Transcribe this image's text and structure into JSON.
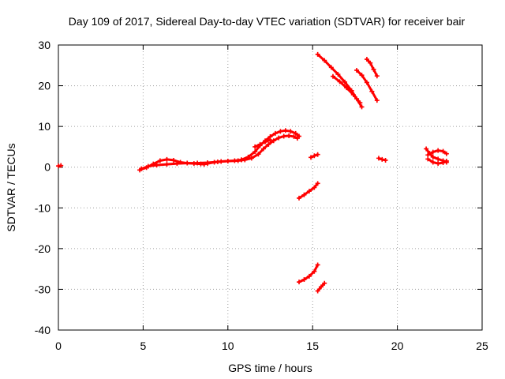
{
  "chart_data": {
    "type": "scatter",
    "title": "Day 109 of 2017, Sidereal Day-to-day VTEC variation (SDTVAR) for receiver bair",
    "xlabel": "GPS time / hours",
    "ylabel": "SDTVAR / TECUs",
    "xlim": [
      0,
      25
    ],
    "ylim": [
      -40,
      30
    ],
    "xticks": [
      "0",
      "5",
      "10",
      "15",
      "20",
      "25"
    ],
    "yticks": [
      "-40",
      "-30",
      "-20",
      "-10",
      "0",
      "10",
      "20",
      "30"
    ],
    "grid": true,
    "series_color": "#ff0000",
    "segments": [
      [
        [
          0.0,
          0.3
        ],
        [
          0.15,
          0.4
        ]
      ],
      [
        [
          4.8,
          -0.7
        ],
        [
          5.2,
          -0.1
        ],
        [
          5.6,
          0.8
        ],
        [
          6.0,
          1.6
        ],
        [
          6.4,
          1.9
        ],
        [
          6.8,
          1.7
        ],
        [
          7.2,
          1.2
        ],
        [
          7.6,
          1.0
        ],
        [
          8.0,
          0.9
        ],
        [
          8.4,
          0.8
        ],
        [
          8.6,
          0.7
        ],
        [
          8.8,
          0.9
        ],
        [
          9.2,
          1.2
        ],
        [
          9.6,
          1.4
        ],
        [
          10.0,
          1.5
        ],
        [
          10.4,
          1.6
        ],
        [
          10.8,
          1.8
        ]
      ],
      [
        [
          4.9,
          -0.4
        ],
        [
          5.3,
          0.2
        ],
        [
          5.8,
          0.5
        ],
        [
          6.4,
          0.7
        ],
        [
          7.0,
          0.9
        ],
        [
          7.6,
          1.0
        ],
        [
          8.2,
          1.0
        ],
        [
          8.8,
          1.1
        ],
        [
          9.4,
          1.3
        ],
        [
          10.0,
          1.5
        ],
        [
          10.6,
          1.6
        ],
        [
          11.0,
          1.8
        ]
      ],
      [
        [
          10.8,
          1.8
        ],
        [
          11.2,
          2.5
        ],
        [
          11.6,
          3.8
        ],
        [
          11.9,
          5.3
        ],
        [
          12.2,
          6.5
        ],
        [
          12.5,
          7.5
        ],
        [
          12.8,
          8.3
        ],
        [
          13.1,
          8.8
        ],
        [
          13.4,
          9.0
        ],
        [
          13.7,
          8.8
        ],
        [
          14.0,
          8.3
        ],
        [
          14.2,
          7.6
        ]
      ],
      [
        [
          11.0,
          1.8
        ],
        [
          11.4,
          2.2
        ],
        [
          11.8,
          3.2
        ],
        [
          12.1,
          4.5
        ],
        [
          12.4,
          5.6
        ],
        [
          12.7,
          6.5
        ],
        [
          13.0,
          7.2
        ],
        [
          13.3,
          7.6
        ],
        [
          13.6,
          7.7
        ],
        [
          13.9,
          7.5
        ],
        [
          14.1,
          7.1
        ]
      ],
      [
        [
          11.6,
          5.0
        ],
        [
          11.9,
          5.6
        ],
        [
          12.2,
          6.2
        ],
        [
          12.5,
          6.7
        ]
      ],
      [
        [
          14.2,
          -7.6
        ],
        [
          14.5,
          -6.8
        ],
        [
          14.8,
          -5.9
        ],
        [
          15.1,
          -5.0
        ],
        [
          15.3,
          -4.0
        ]
      ],
      [
        [
          14.2,
          -28.2
        ],
        [
          14.5,
          -27.6
        ],
        [
          14.8,
          -26.8
        ],
        [
          15.1,
          -25.6
        ],
        [
          15.3,
          -24.0
        ]
      ],
      [
        [
          15.3,
          -30.4
        ],
        [
          15.5,
          -29.4
        ],
        [
          15.7,
          -28.5
        ]
      ],
      [
        [
          14.9,
          2.4
        ],
        [
          15.1,
          2.8
        ],
        [
          15.3,
          3.1
        ]
      ],
      [
        [
          15.3,
          27.7
        ],
        [
          15.7,
          26.2
        ],
        [
          16.1,
          24.5
        ],
        [
          16.5,
          22.8
        ],
        [
          16.9,
          20.9
        ],
        [
          17.3,
          18.8
        ],
        [
          17.6,
          16.8
        ],
        [
          17.9,
          14.8
        ]
      ],
      [
        [
          16.2,
          22.3
        ],
        [
          16.6,
          21.0
        ],
        [
          17.0,
          19.5
        ],
        [
          17.4,
          17.8
        ],
        [
          17.8,
          15.8
        ]
      ],
      [
        [
          18.2,
          26.5
        ],
        [
          18.4,
          25.6
        ],
        [
          18.6,
          24.0
        ],
        [
          18.8,
          22.4
        ]
      ],
      [
        [
          17.6,
          23.8
        ],
        [
          17.9,
          22.6
        ],
        [
          18.2,
          20.8
        ],
        [
          18.5,
          18.6
        ],
        [
          18.8,
          16.4
        ]
      ],
      [
        [
          18.9,
          2.2
        ],
        [
          19.1,
          1.9
        ],
        [
          19.3,
          1.7
        ]
      ],
      [
        [
          21.7,
          4.5
        ],
        [
          21.9,
          3.4
        ],
        [
          22.1,
          2.5
        ],
        [
          22.4,
          2.0
        ],
        [
          22.7,
          1.6
        ],
        [
          22.9,
          1.2
        ]
      ],
      [
        [
          21.8,
          3.0
        ],
        [
          22.1,
          3.7
        ],
        [
          22.4,
          4.1
        ],
        [
          22.7,
          3.9
        ],
        [
          22.9,
          3.3
        ]
      ],
      [
        [
          21.8,
          2.0
        ],
        [
          22.1,
          1.2
        ],
        [
          22.4,
          0.9
        ],
        [
          22.7,
          1.1
        ],
        [
          22.9,
          1.5
        ]
      ]
    ]
  }
}
